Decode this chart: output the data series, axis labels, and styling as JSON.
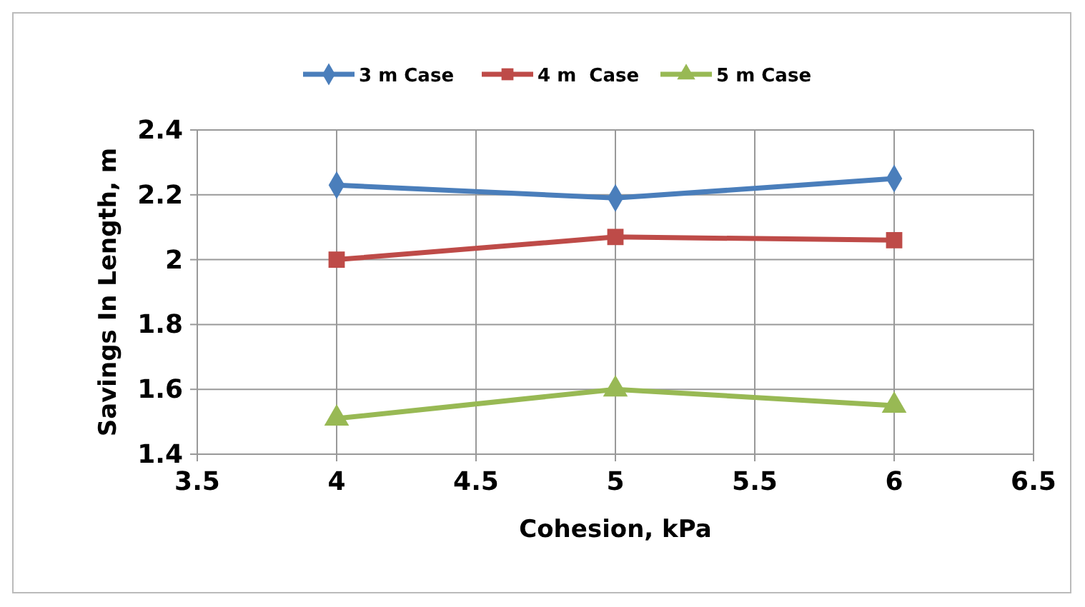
{
  "chart_data": {
    "type": "line",
    "xlabel": "Cohesion, kPa",
    "ylabel": "Savings In Length, m",
    "x": [
      4,
      5,
      6
    ],
    "series": [
      {
        "name": "3 m Case",
        "color": "#4a7ebb",
        "values": [
          2.23,
          2.19,
          2.25
        ],
        "marker": "diamond"
      },
      {
        "name": "4 m  Case",
        "color": "#be4b48",
        "values": [
          2.0,
          2.07,
          2.06
        ],
        "marker": "square"
      },
      {
        "name": "5 m Case",
        "color": "#98b954",
        "values": [
          1.51,
          1.6,
          1.55
        ],
        "marker": "triangle"
      }
    ],
    "xlim": [
      3.5,
      6.5
    ],
    "xticks": [
      3.5,
      4,
      4.5,
      5,
      5.5,
      6,
      6.5
    ],
    "ylim": [
      1.4,
      2.4
    ],
    "yticks": [
      1.4,
      1.6,
      1.8,
      2,
      2.2,
      2.4
    ],
    "grid": true,
    "legend": "top",
    "line_style": "solid"
  }
}
